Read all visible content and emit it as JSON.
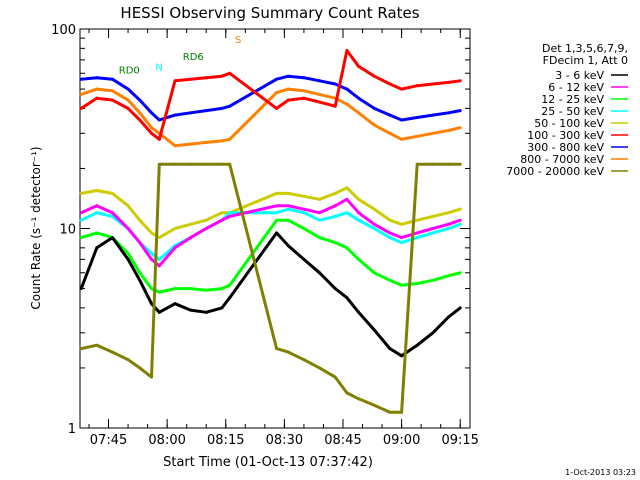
{
  "chart_data": {
    "type": "line",
    "title": "HESSI Observing Summary Count Rates",
    "xlabel": "Start Time (01-Oct-13 07:37:42)",
    "ylabel": "Count Rate (s⁻¹ detector⁻¹)",
    "y_scale": "log",
    "ylim": [
      1,
      100
    ],
    "xlim": [
      "07:37:42",
      "09:17:30"
    ],
    "grid": false,
    "legend_position": "right",
    "legend_header": [
      "Det 1,3,5,6,7,9,",
      "FDecim 1, Att 0"
    ],
    "x_ticks": [
      "07:45",
      "08:00",
      "08:15",
      "08:30",
      "08:45",
      "09:00",
      "09:15"
    ],
    "y_ticks": [
      "1",
      "10",
      "100"
    ],
    "footer": "1-Oct-2013 03:23",
    "annotations": [
      {
        "text": "N",
        "color": "#00ffff"
      },
      {
        "text": "RD0",
        "color": "#008000"
      },
      {
        "text": "RD6",
        "color": "#008000"
      },
      {
        "text": "S",
        "color": "#ff8000"
      }
    ],
    "series": [
      {
        "name": "3 - 6 keV",
        "color": "#000000",
        "x": [
          "07:38",
          "07:42",
          "07:46",
          "07:50",
          "07:53",
          "07:56",
          "07:58",
          "08:02",
          "08:06",
          "08:10",
          "08:14",
          "08:16",
          "08:28",
          "08:31",
          "08:35",
          "08:39",
          "08:43",
          "08:46",
          "08:49",
          "08:53",
          "08:57",
          "09:00",
          "09:04",
          "09:08",
          "09:12",
          "09:15"
        ],
        "values": [
          5,
          8,
          9,
          7,
          5.5,
          4.2,
          3.8,
          4.2,
          3.9,
          3.8,
          4,
          4.5,
          9.5,
          8.2,
          7,
          6,
          5,
          4.5,
          3.8,
          3.1,
          2.5,
          2.3,
          2.6,
          3,
          3.6,
          4
        ]
      },
      {
        "name": "6 - 12 keV",
        "color": "#ff00ff",
        "x": [
          "07:38",
          "07:42",
          "07:46",
          "07:50",
          "07:53",
          "07:56",
          "07:58",
          "08:02",
          "08:06",
          "08:10",
          "08:14",
          "08:16",
          "08:28",
          "08:31",
          "08:35",
          "08:39",
          "08:43",
          "08:46",
          "08:49",
          "08:53",
          "08:57",
          "09:00",
          "09:04",
          "09:08",
          "09:12",
          "09:15"
        ],
        "values": [
          12,
          13,
          12,
          10,
          8.5,
          7,
          6.5,
          8,
          9,
          10,
          11,
          11.5,
          13,
          13,
          12.5,
          12,
          13,
          14,
          12,
          10.5,
          9.5,
          9,
          9.5,
          10,
          10.5,
          11
        ]
      },
      {
        "name": "12 - 25 keV",
        "color": "#00ff00",
        "x": [
          "07:38",
          "07:42",
          "07:46",
          "07:50",
          "07:53",
          "07:56",
          "07:58",
          "08:02",
          "08:06",
          "08:10",
          "08:14",
          "08:16",
          "08:28",
          "08:31",
          "08:35",
          "08:39",
          "08:43",
          "08:46",
          "08:49",
          "08:53",
          "08:57",
          "09:00",
          "09:04",
          "09:08",
          "09:12",
          "09:15"
        ],
        "values": [
          9,
          9.5,
          9,
          7.5,
          6,
          5,
          4.8,
          5,
          5,
          4.9,
          5,
          5.2,
          11,
          11,
          10,
          9,
          8.5,
          8,
          7,
          6,
          5.5,
          5.2,
          5.3,
          5.5,
          5.8,
          6
        ]
      },
      {
        "name": "25 - 50 keV",
        "color": "#00ffff",
        "x": [
          "07:38",
          "07:42",
          "07:46",
          "07:50",
          "07:53",
          "07:56",
          "07:58",
          "08:02",
          "08:06",
          "08:10",
          "08:14",
          "08:16",
          "08:28",
          "08:31",
          "08:35",
          "08:39",
          "08:43",
          "08:46",
          "08:49",
          "08:53",
          "08:57",
          "09:00",
          "09:04",
          "09:08",
          "09:12",
          "09:15"
        ],
        "values": [
          11,
          12,
          11.5,
          10,
          8.5,
          7.5,
          7,
          8.2,
          9,
          10,
          11,
          12,
          12,
          12.5,
          12,
          11,
          11.5,
          12,
          11,
          10,
          9,
          8.5,
          9,
          9.5,
          10,
          10.5
        ]
      },
      {
        "name": "50 - 100 keV",
        "color": "#cccc00",
        "x": [
          "07:38",
          "07:42",
          "07:46",
          "07:50",
          "07:53",
          "07:56",
          "07:58",
          "08:02",
          "08:06",
          "08:10",
          "08:14",
          "08:16",
          "08:28",
          "08:31",
          "08:35",
          "08:39",
          "08:43",
          "08:46",
          "08:49",
          "08:53",
          "08:57",
          "09:00",
          "09:04",
          "09:08",
          "09:12",
          "09:15"
        ],
        "values": [
          15,
          15.5,
          15,
          13,
          11,
          9.5,
          9,
          10,
          10.5,
          11,
          12,
          12,
          15,
          15,
          14.5,
          14,
          15,
          16,
          14,
          12.5,
          11,
          10.5,
          11,
          11.5,
          12,
          12.5
        ]
      },
      {
        "name": "100 - 300 keV",
        "color": "#ff0000",
        "x": [
          "07:38",
          "07:42",
          "07:46",
          "07:50",
          "07:53",
          "07:56",
          "07:58",
          "08:02",
          "08:06",
          "08:10",
          "08:14",
          "08:16",
          "08:28",
          "08:31",
          "08:35",
          "08:39",
          "08:43",
          "08:46",
          "08:49",
          "08:53",
          "08:57",
          "09:00",
          "09:04",
          "09:08",
          "09:12",
          "09:15"
        ],
        "values": [
          40,
          45,
          44,
          40,
          35,
          30,
          28,
          55,
          56,
          57,
          58,
          60,
          40,
          44,
          45,
          43,
          41,
          78,
          65,
          58,
          53,
          50,
          52,
          53,
          54,
          55
        ]
      },
      {
        "name": "300 - 800 keV",
        "color": "#0000ff",
        "x": [
          "07:38",
          "07:42",
          "07:46",
          "07:50",
          "07:53",
          "07:56",
          "07:58",
          "08:02",
          "08:06",
          "08:10",
          "08:14",
          "08:16",
          "08:28",
          "08:31",
          "08:35",
          "08:39",
          "08:43",
          "08:46",
          "08:49",
          "08:53",
          "08:57",
          "09:00",
          "09:04",
          "09:08",
          "09:12",
          "09:15"
        ],
        "values": [
          56,
          57,
          56,
          50,
          44,
          38,
          35,
          37,
          38,
          39,
          40,
          41,
          56,
          58,
          57,
          55,
          53,
          50,
          45,
          40,
          37,
          35,
          36,
          37,
          38,
          39
        ]
      },
      {
        "name": "800 - 7000 keV",
        "color": "#ff8000",
        "x": [
          "07:38",
          "07:42",
          "07:46",
          "07:50",
          "07:53",
          "07:56",
          "07:58",
          "08:02",
          "08:06",
          "08:10",
          "08:14",
          "08:16",
          "08:28",
          "08:31",
          "08:35",
          "08:39",
          "08:43",
          "08:46",
          "08:49",
          "08:53",
          "08:57",
          "09:00",
          "09:04",
          "09:08",
          "09:12",
          "09:15"
        ],
        "values": [
          47,
          50,
          49,
          44,
          38,
          32,
          30,
          26,
          26.5,
          27,
          27.5,
          28,
          48,
          50,
          49,
          47,
          45,
          42,
          38,
          33,
          30,
          28,
          29,
          30,
          31,
          32
        ]
      },
      {
        "name": "7000 - 20000 keV",
        "color": "#808000",
        "x": [
          "07:38",
          "07:42",
          "07:46",
          "07:50",
          "07:53",
          "07:56",
          "07:58",
          "08:02",
          "08:06",
          "08:10",
          "08:14",
          "08:16",
          "08:28",
          "08:31",
          "08:35",
          "08:39",
          "08:43",
          "08:46",
          "08:49",
          "08:53",
          "08:57",
          "09:00",
          "09:04",
          "09:08",
          "09:12",
          "09:15"
        ],
        "values": [
          2.5,
          2.6,
          2.4,
          2.2,
          2,
          1.8,
          21,
          21,
          21,
          21,
          21,
          21,
          2.5,
          2.4,
          2.2,
          2,
          1.8,
          1.5,
          1.4,
          1.3,
          1.2,
          1.2,
          21,
          21,
          21,
          21
        ]
      }
    ]
  }
}
